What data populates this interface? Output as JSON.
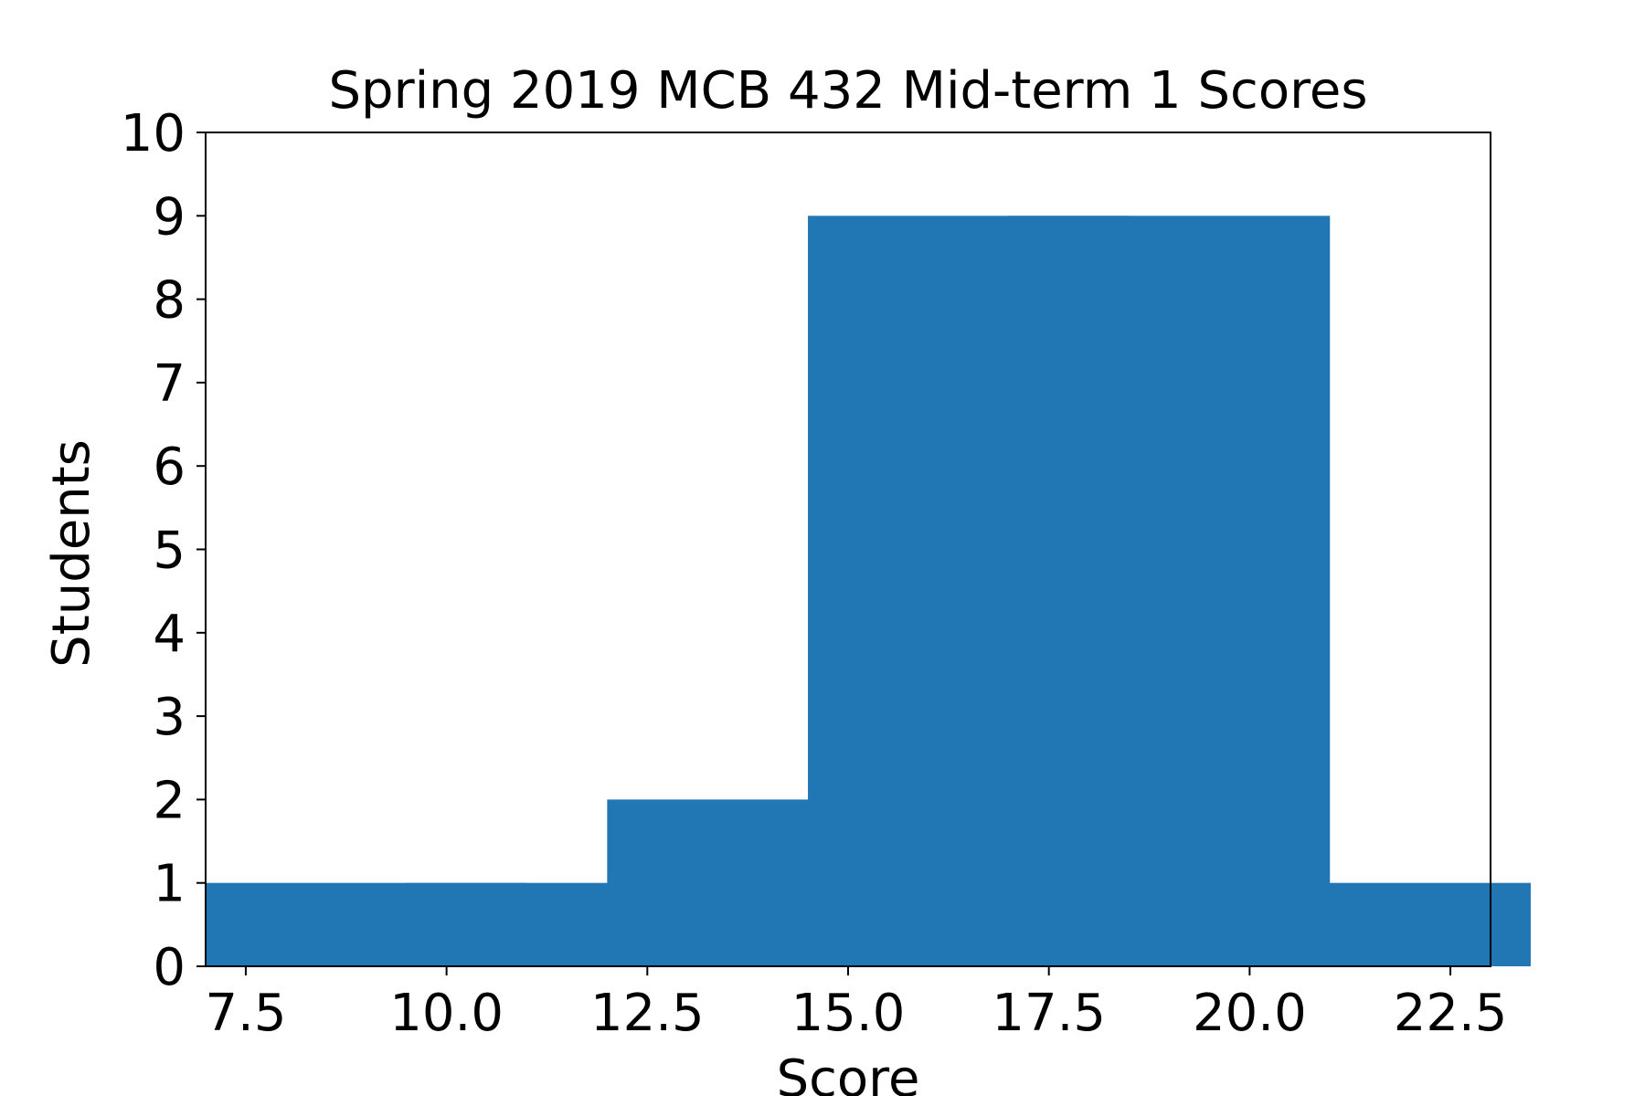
{
  "chart_data": {
    "type": "bar",
    "title": "Spring 2019 MCB 432 Mid-term 1 Scores",
    "xlabel": "Score",
    "ylabel": "Students",
    "xlim": [
      7.0,
      23.0
    ],
    "ylim": [
      0,
      10
    ],
    "bar_width": 4,
    "bars": [
      {
        "x": 9.0,
        "value": 1
      },
      {
        "x": 11.5,
        "value": 1
      },
      {
        "x": 14.0,
        "value": 2
      },
      {
        "x": 16.5,
        "value": 9
      },
      {
        "x": 19.0,
        "value": 9
      },
      {
        "x": 21.5,
        "value": 1
      }
    ],
    "x_ticks": [
      7.5,
      10.0,
      12.5,
      15.0,
      17.5,
      20.0,
      22.5
    ],
    "x_tick_labels": [
      "7.5",
      "10.0",
      "12.5",
      "15.0",
      "17.5",
      "20.0",
      "22.5"
    ],
    "y_ticks": [
      0,
      1,
      2,
      3,
      4,
      5,
      6,
      7,
      8,
      9,
      10
    ],
    "y_tick_labels": [
      "0",
      "1",
      "2",
      "3",
      "4",
      "5",
      "6",
      "7",
      "8",
      "9",
      "10"
    ],
    "bar_color": "#2077b4",
    "grid": false,
    "legend": false
  }
}
